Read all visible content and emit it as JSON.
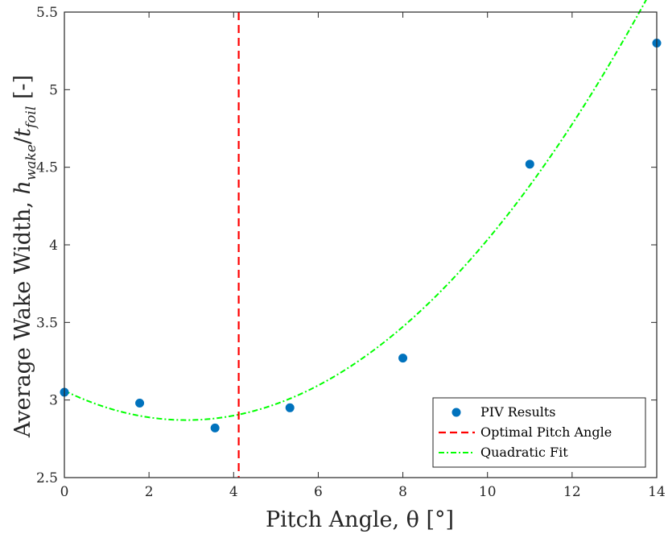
{
  "chart_data": {
    "type": "scatter",
    "xlabel": "Pitch Angle, θ [°]",
    "ylabel": "Average Wake Width, h_wake/t_foil [-]",
    "ylabel_parts": {
      "prefix": "Average Wake Width, ",
      "h": "h",
      "h_sub": "wake",
      "slash": "/",
      "t": "t",
      "t_sub": "foil",
      "unit": " [-]"
    },
    "xlim": [
      0,
      14
    ],
    "ylim": [
      2.5,
      5.5
    ],
    "xticks": [
      0,
      2,
      4,
      6,
      8,
      10,
      12,
      14
    ],
    "yticks": [
      2.5,
      3,
      3.5,
      4,
      4.5,
      5,
      5.5
    ],
    "xtick_labels": [
      "0",
      "2",
      "4",
      "6",
      "8",
      "10",
      "12",
      "14"
    ],
    "ytick_labels": [
      "2.5",
      "3",
      "3.5",
      "4",
      "4.5",
      "5",
      "5.5"
    ],
    "series": [
      {
        "name": "PIV Results",
        "kind": "scatter",
        "color": "#0072BD",
        "x": [
          0,
          1.78,
          3.56,
          5.33,
          8.0,
          11.0,
          14.0
        ],
        "y": [
          3.05,
          2.98,
          2.82,
          2.95,
          3.27,
          4.52,
          5.3
        ]
      },
      {
        "name": "Optimal Pitch Angle",
        "kind": "vline",
        "color": "#FF0000",
        "x": 4.12
      },
      {
        "name": "Quadratic Fit",
        "kind": "quadratic",
        "color": "#00FF00",
        "coefficients": {
          "a": 0.0229,
          "b": -0.1317,
          "c": 3.06
        }
      }
    ],
    "legend": {
      "position": "bottom-right",
      "entries": [
        "PIV Results",
        "Optimal Pitch Angle",
        "Quadratic Fit"
      ]
    }
  }
}
